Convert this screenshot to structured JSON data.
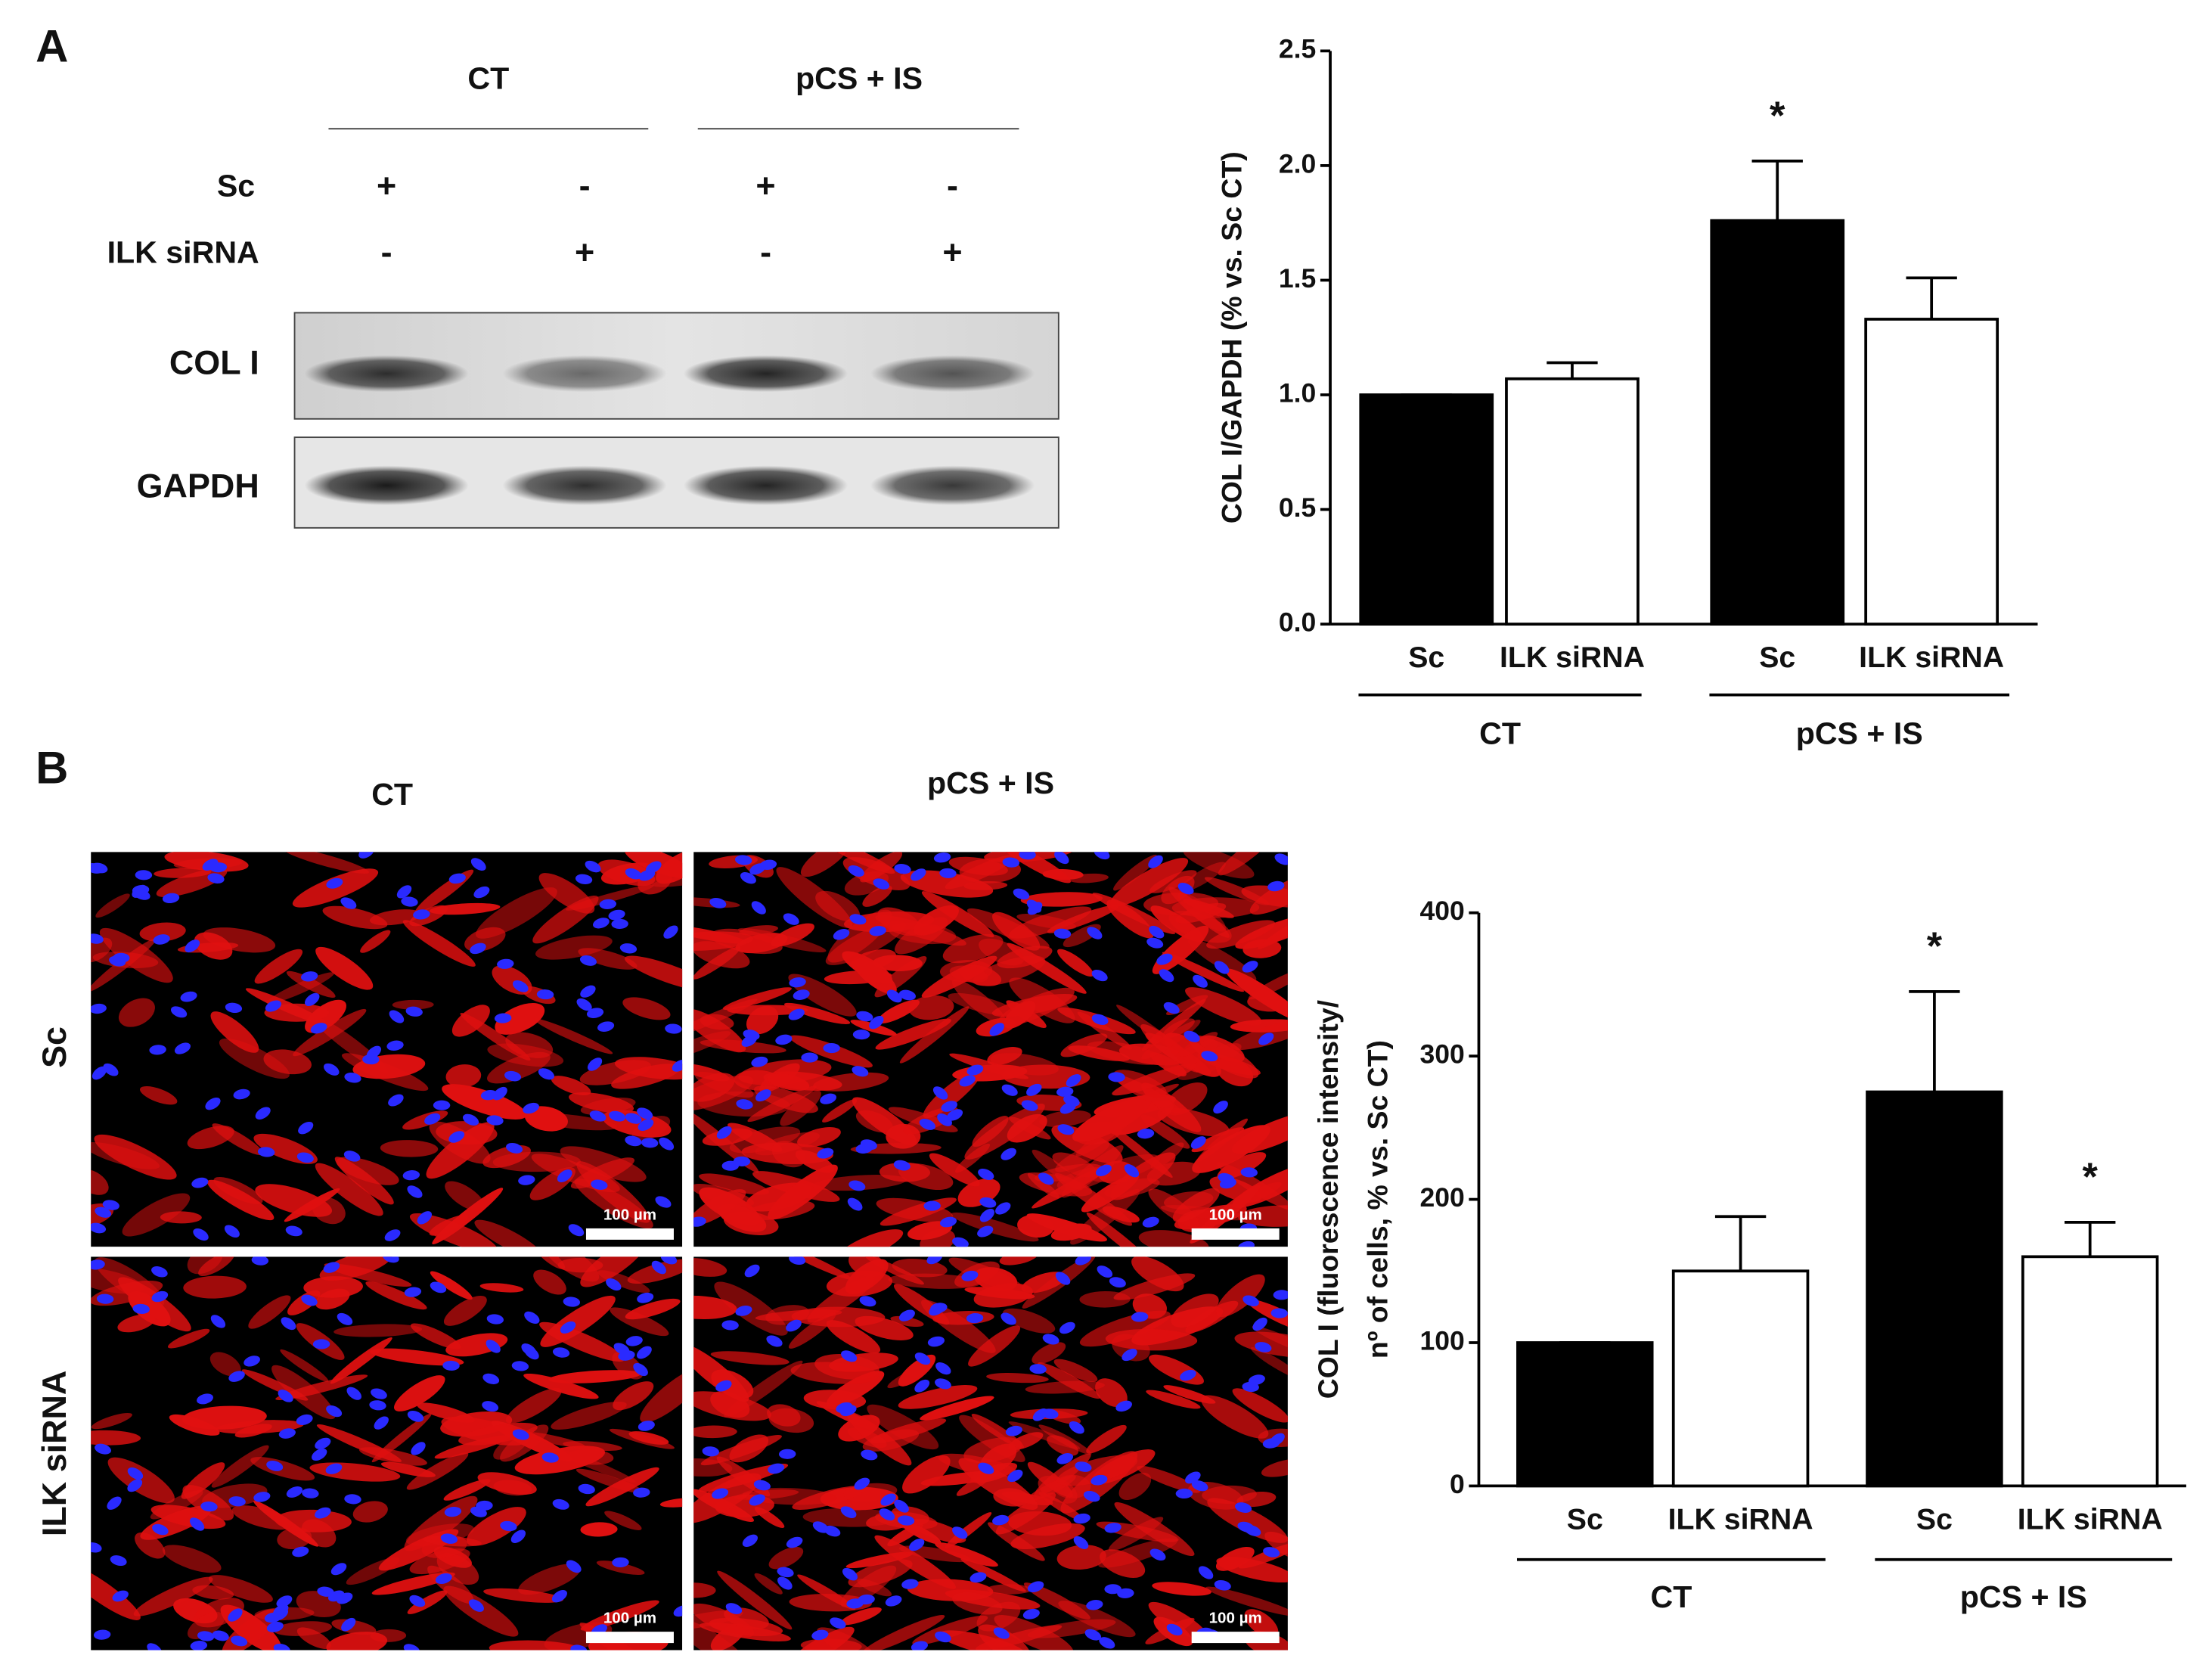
{
  "figure": {
    "panel_a": {
      "label": "A",
      "conditions": [
        "CT",
        "pCS + IS"
      ],
      "rows": [
        {
          "label": "Sc",
          "signs": [
            "+",
            "-",
            "+",
            "-"
          ]
        },
        {
          "label": "ILK siRNA",
          "signs": [
            "-",
            "+",
            "-",
            "+"
          ]
        }
      ],
      "blots": [
        "COL I",
        "GAPDH"
      ]
    },
    "panel_b": {
      "label": "B",
      "columns": [
        "CT",
        "pCS + IS"
      ],
      "rows": [
        "Sc",
        "ILK siRNA"
      ],
      "scale_bar": "100 µm"
    }
  },
  "chart_data": [
    {
      "type": "bar",
      "categories": [
        "Sc",
        "ILK siRNA",
        "Sc",
        "ILK siRNA"
      ],
      "groups": [
        "CT",
        "pCS + IS"
      ],
      "values": [
        1.0,
        1.07,
        1.76,
        1.33
      ],
      "errors": [
        0,
        0.07,
        0.26,
        0.18
      ],
      "colors": [
        "#000000",
        "#ffffff",
        "#000000",
        "#ffffff"
      ],
      "markers": [
        null,
        null,
        "*",
        null
      ],
      "ylabel": [
        "COL I/GAPDH (% vs. Sc CT)"
      ],
      "ylim": [
        0,
        2.5
      ],
      "yticks": [
        {
          "value": 0,
          "label": "0.0"
        },
        0.5,
        {
          "value": 1,
          "label": "1.0"
        },
        1.5,
        {
          "value": 2,
          "label": "2.0"
        },
        2.5
      ]
    },
    {
      "type": "bar",
      "categories": [
        "Sc",
        "ILK siRNA",
        "Sc",
        "ILK siRNA"
      ],
      "groups": [
        "CT",
        "pCS + IS"
      ],
      "values": [
        100,
        150,
        275,
        160
      ],
      "errors": [
        0,
        38,
        70,
        24
      ],
      "colors": [
        "#000000",
        "#ffffff",
        "#000000",
        "#ffffff"
      ],
      "markers": [
        null,
        null,
        "*",
        "*"
      ],
      "ylabel": [
        "COL I (fluorescence intensity/",
        "nº of cells, % vs. Sc CT)"
      ],
      "ylim": [
        0,
        400
      ],
      "yticks": [
        0,
        100,
        200,
        300,
        400
      ]
    }
  ]
}
